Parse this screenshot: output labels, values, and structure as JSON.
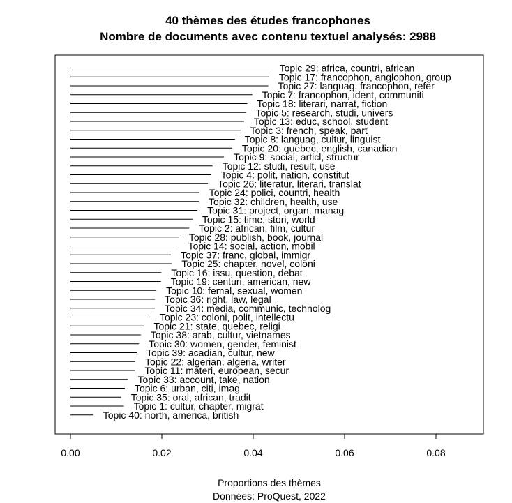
{
  "chart_data": {
    "type": "bar",
    "orientation": "horizontal",
    "title": "40 thèmes des études francophones",
    "subtitle": "Nombre de documents avec contenu textuel analysés: 2988",
    "xlabel": "Proportions des thèmes",
    "caption": "Données: ProQuest, 2022",
    "xlim": [
      0,
      0.09
    ],
    "xticks": [
      "0.00",
      "0.02",
      "0.04",
      "0.06",
      "0.08"
    ],
    "xtick_values": [
      0,
      0.02,
      0.04,
      0.06,
      0.08
    ],
    "grid": false,
    "categories": [
      "Topic 29: africa, countri, african",
      "Topic 17: francophon, anglophon, group",
      "Topic 27: languag, francophon, refer",
      "Topic 7: francophon, ident, communiti",
      "Topic 18: literari, narrat, fiction",
      "Topic 5: research, studi, univers",
      "Topic 13: educ, school, student",
      "Topic 3: french, speak, part",
      "Topic 8: languag, cultur, linguist",
      "Topic 20: quebec, english, canadian",
      "Topic 9: social, articl, structur",
      "Topic 12: studi, result, use",
      "Topic 4: polit, nation, constitut",
      "Topic 26: literatur, literari, translat",
      "Topic 24: polici, countri, health",
      "Topic 32: children, health, use",
      "Topic 31: project, organ, manag",
      "Topic 15: time, stori, world",
      "Topic 2: african, film, cultur",
      "Topic 28: publish, book, journal",
      "Topic 14: social, action, mobil",
      "Topic 37: franc, global, immigr",
      "Topic 25: chapter, novel, coloni",
      "Topic 16: issu, question, debat",
      "Topic 19: centuri, american, new",
      "Topic 10: femal, sexual, women",
      "Topic 36: right, law, legal",
      "Topic 34: media, communic, technolog",
      "Topic 23: coloni, polit, intellectu",
      "Topic 21: state, quebec, religi",
      "Topic 38: arab, cultur, vietnames",
      "Topic 30: women, gender, feminist",
      "Topic 39: acadian, cultur, new",
      "Topic 22: algerian, algeria, writer",
      "Topic 11: materi, european, secur",
      "Topic 33: account, take, nation",
      "Topic 6: urban, citi, imag",
      "Topic 35: oral, african, tradit",
      "Topic 1: cultur, chapter, migrat",
      "Topic 40: north, america, british"
    ],
    "values": [
      0.0436,
      0.0435,
      0.0433,
      0.0398,
      0.0387,
      0.0384,
      0.038,
      0.0372,
      0.036,
      0.0354,
      0.0336,
      0.0311,
      0.0308,
      0.0301,
      0.0282,
      0.0281,
      0.0278,
      0.0267,
      0.026,
      0.0238,
      0.0236,
      0.022,
      0.0222,
      0.0199,
      0.0198,
      0.0188,
      0.0185,
      0.0185,
      0.0174,
      0.0161,
      0.0154,
      0.015,
      0.0145,
      0.0142,
      0.0141,
      0.0126,
      0.0119,
      0.0111,
      0.0117,
      0.005
    ]
  }
}
